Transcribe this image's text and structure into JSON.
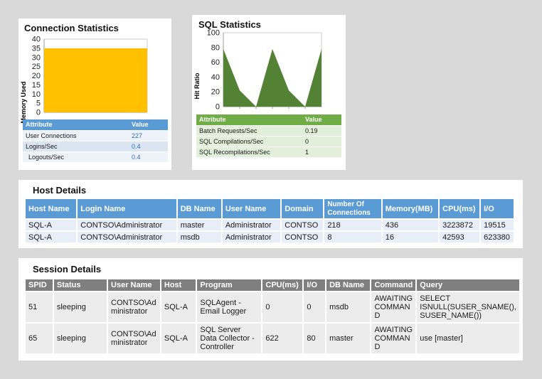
{
  "connection_stats": {
    "title": "Connection Statistics",
    "chart_data": {
      "type": "area",
      "ylabel": "Memory Used",
      "ylim": [
        0,
        40
      ],
      "yticks": [
        "0",
        "5",
        "10",
        "15",
        "20",
        "25",
        "30",
        "35",
        "40"
      ],
      "values": [
        35,
        35
      ],
      "color": "#ffc000"
    },
    "table": {
      "headers": [
        "Attribute",
        "Value"
      ],
      "rows": [
        [
          "User Connections",
          "227"
        ],
        [
          "Logins/Sec",
          "0.4"
        ],
        [
          "Logouts/Sec",
          "0.4"
        ]
      ]
    }
  },
  "sql_stats": {
    "title": "SQL Statistics",
    "chart_data": {
      "type": "area",
      "ylabel": "Hit Ratio",
      "ylim": [
        0,
        100
      ],
      "yticks": [
        "0",
        "20",
        "40",
        "60",
        "80",
        "100"
      ],
      "values": [
        78,
        22,
        0,
        78,
        22,
        0,
        78
      ],
      "color": "#548235"
    },
    "table": {
      "headers": [
        "Attribute",
        "Value"
      ],
      "rows": [
        [
          "Batch Requests/Sec",
          "0.19"
        ],
        [
          "SQL Compilations/Sec",
          "0"
        ],
        [
          "SQL Recompilations/Sec",
          "1"
        ]
      ]
    }
  },
  "host_details": {
    "title": "Host Details",
    "headers": [
      "Host Name",
      "Login Name",
      "DB Name",
      "User Name",
      "Domain",
      "Number Of Connections",
      "Memory(MB)",
      "CPU(ms)",
      "I/O"
    ],
    "rows": [
      [
        "SQL-A",
        "CONTSO\\Administrator",
        "master",
        "Administrator",
        "CONTSO",
        "218",
        "436",
        "3223872",
        "19515"
      ],
      [
        "SQL-A",
        "CONTSO\\Administrator",
        "msdb",
        "Administrator",
        "CONTSO",
        "8",
        "16",
        "42593",
        "623380"
      ]
    ]
  },
  "session_details": {
    "title": "Session Details",
    "headers": [
      "SPID",
      "Status",
      "User Name",
      "Host",
      "Program",
      "CPU(ms)",
      "I/O",
      "DB Name",
      "Command",
      "Query"
    ],
    "rows": [
      [
        "51",
        "sleeping",
        "CONTSO\\Administrator",
        "SQL-A",
        "SQLAgent - Email Logger",
        "0",
        "0",
        "msdb",
        "AWAITING COMMAND",
        "SELECT ISNULL(SUSER_SNAME(), SUSER_NAME())"
      ],
      [
        "65",
        "sleeping",
        "CONTSO\\Administrator",
        "SQL-A",
        "SQL Server Data Collector - Controller",
        "622",
        "80",
        "master",
        "AWAITING COMMAND",
        "use [master]"
      ]
    ]
  }
}
